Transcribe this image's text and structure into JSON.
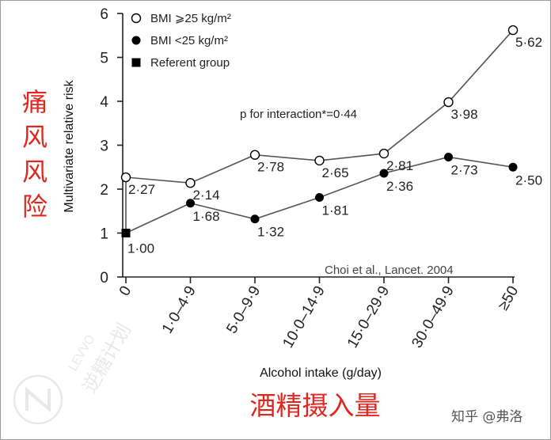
{
  "chart_data": {
    "type": "line",
    "categories": [
      "0",
      "1·0–4·9",
      "5·0–9·9",
      "10·0–14·9",
      "15·0–29·9",
      "30·0–49·9",
      "≥50"
    ],
    "xlabel": "Alcohol intake (g/day)",
    "xlabel_cn": "酒精摄入量",
    "ylabel": "Multivariate relative risk",
    "ylabel_cn": "痛风风险",
    "ylim": [
      0,
      6
    ],
    "yticks": [
      "0",
      "1",
      "2",
      "3",
      "4",
      "5",
      "6"
    ],
    "grid": false,
    "legend_position": "top-left",
    "series": [
      {
        "name": "BMI ⩾25 kg/m²",
        "marker": "open-circle",
        "values": [
          2.27,
          2.14,
          2.78,
          2.65,
          2.81,
          3.98,
          5.62
        ],
        "labels": [
          "2·27",
          "2·14",
          "2·78",
          "2·65",
          "2·81",
          "3·98",
          "5·62"
        ]
      },
      {
        "name": "BMI <25 kg/m²",
        "marker": "filled-circle",
        "values": [
          1.0,
          1.68,
          1.32,
          1.81,
          2.36,
          2.73,
          2.5
        ],
        "labels": [
          "",
          "1·68",
          "1·32",
          "1·81",
          "2·36",
          "2·73",
          "2·50"
        ]
      },
      {
        "name": "Referent group",
        "marker": "filled-square",
        "values": [
          1.0,
          null,
          null,
          null,
          null,
          null,
          null
        ],
        "labels": [
          "1·00",
          "",
          "",
          "",
          "",
          "",
          ""
        ]
      }
    ],
    "annotation": "p for interaction*=0·44",
    "source": "Choi et al., Lancet. 2004"
  },
  "watermark": {
    "brand": "LEVVO",
    "brand_cn": "逆糖计划",
    "credit": "知乎 @弗洛"
  },
  "colors": {
    "line": "#555555",
    "marker": "#000000",
    "red_text": "#e0271f"
  }
}
